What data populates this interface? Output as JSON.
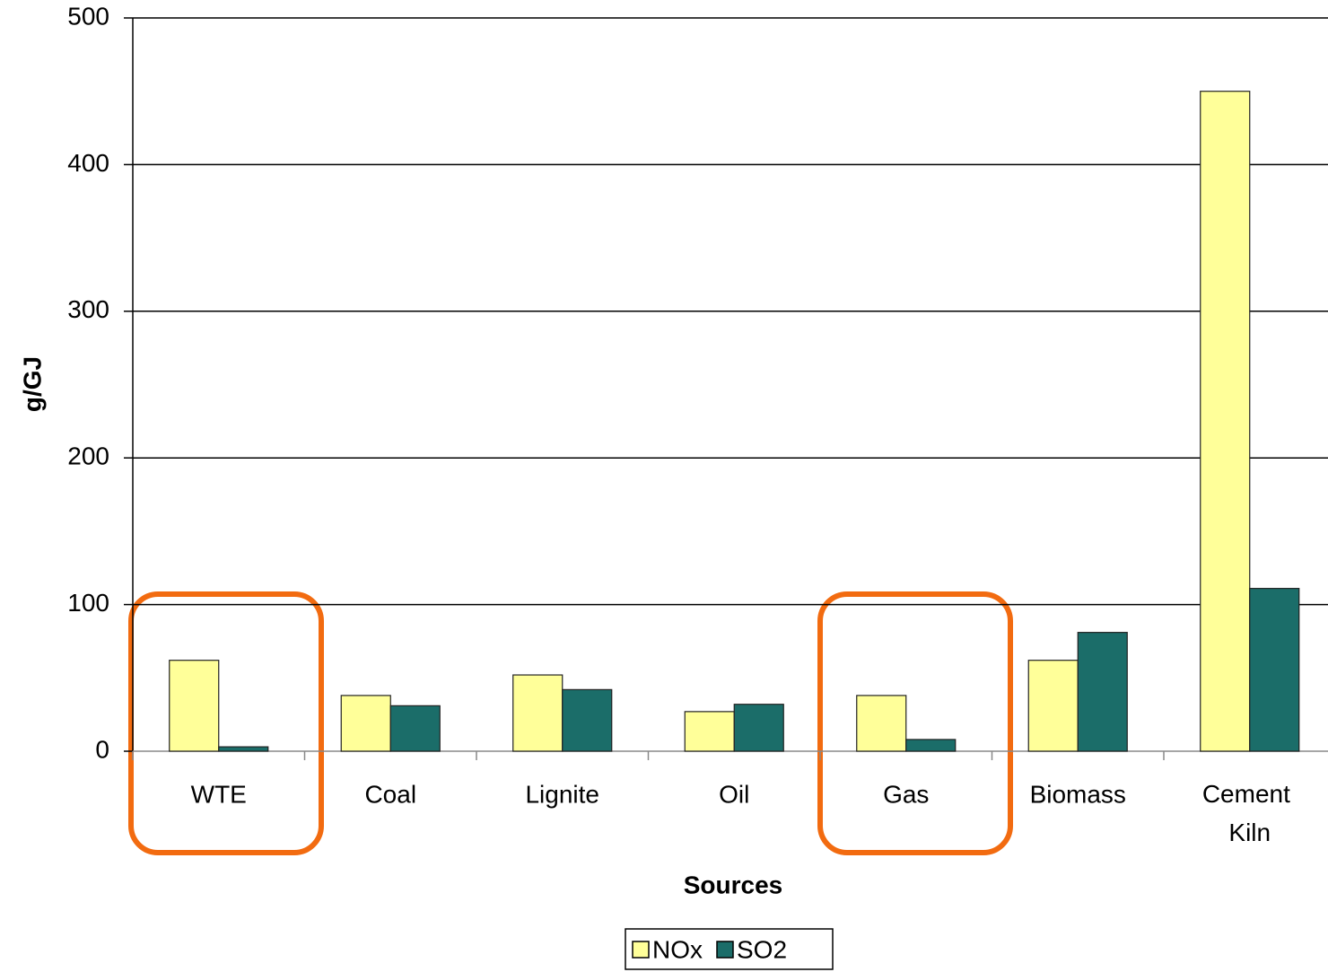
{
  "chart_data": {
    "type": "bar",
    "categories": [
      "WTE",
      "Coal",
      "Lignite",
      "Oil",
      "Gas",
      "Biomass",
      "Cement Kiln"
    ],
    "series": [
      {
        "name": "NOx",
        "color": "#ffff99",
        "values": [
          62,
          38,
          52,
          27,
          38,
          62,
          450
        ]
      },
      {
        "name": "SO2",
        "color": "#1b6d69",
        "values": [
          3,
          31,
          42,
          32,
          8,
          81,
          111
        ]
      }
    ],
    "xlabel": "Sources",
    "ylabel": "g/GJ",
    "ylim": [
      0,
      500
    ],
    "yticks": [
      0,
      100,
      200,
      300,
      400,
      500
    ],
    "grid": true,
    "legend": "bottom"
  }
}
